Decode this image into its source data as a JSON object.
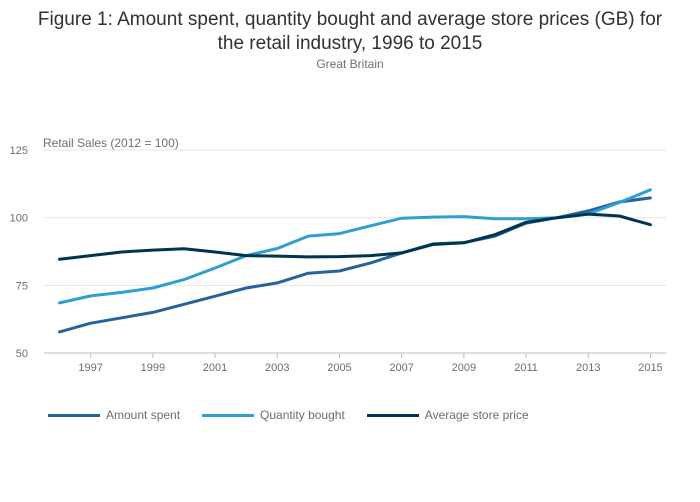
{
  "title_line1": "Figure 1: Amount spent, quantity bought and average store prices (GB) for",
  "title_line2": "the retail industry, 1996 to 2015",
  "subtitle": "Great Britain",
  "chart_data": {
    "type": "line",
    "ylabel": "Retail Sales (2012 = 100)",
    "ylim": [
      50,
      125
    ],
    "yticks": [
      50,
      75,
      100,
      125
    ],
    "xlim": [
      1995.5,
      2015.5
    ],
    "xticks": [
      1997,
      1999,
      2001,
      2003,
      2005,
      2007,
      2009,
      2011,
      2013,
      2015
    ],
    "x": [
      1996,
      1997,
      1998,
      1999,
      2000,
      2001,
      2002,
      2003,
      2004,
      2005,
      2006,
      2007,
      2008,
      2009,
      2010,
      2011,
      2012,
      2013,
      2014,
      2015
    ],
    "grid": true,
    "legend_position": "bottom",
    "series": [
      {
        "name": "Amount spent",
        "color": "#27639b",
        "values": [
          57.8,
          61.0,
          63.0,
          65.0,
          68.0,
          71.0,
          74.0,
          75.9,
          79.5,
          80.3,
          83.3,
          86.9,
          90.3,
          90.8,
          93.2,
          98.0,
          100.0,
          102.5,
          105.8,
          107.3
        ]
      },
      {
        "name": "Quantity bought",
        "color": "#2d9fd0",
        "values": [
          68.5,
          71.1,
          72.4,
          74.0,
          77.1,
          81.4,
          86.0,
          88.6,
          93.2,
          94.1,
          97.0,
          99.8,
          100.2,
          100.4,
          99.6,
          99.6,
          100.0,
          101.4,
          105.6,
          110.3
        ]
      },
      {
        "name": "Average store price",
        "color": "#003450",
        "values": [
          84.6,
          86.0,
          87.3,
          88.0,
          88.5,
          87.3,
          86.0,
          85.8,
          85.5,
          85.6,
          86.0,
          87.0,
          90.1,
          90.7,
          93.7,
          98.3,
          100.0,
          101.3,
          100.6,
          97.4
        ]
      }
    ]
  }
}
